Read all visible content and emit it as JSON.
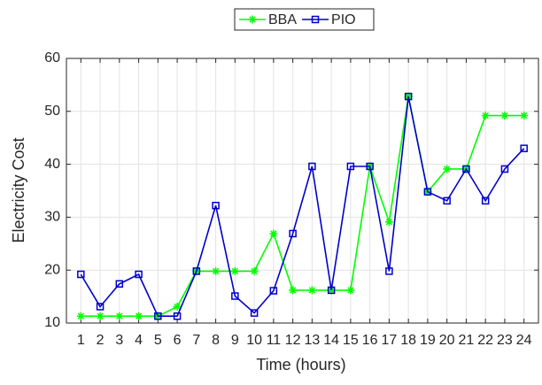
{
  "chart_data": {
    "type": "line",
    "x": [
      1,
      2,
      3,
      4,
      5,
      6,
      7,
      8,
      9,
      10,
      11,
      12,
      13,
      14,
      15,
      16,
      17,
      18,
      19,
      20,
      21,
      22,
      23,
      24
    ],
    "series": [
      {
        "name": "BBA",
        "color": "#00ff00",
        "marker": "asterisk",
        "values": [
          11.3,
          11.3,
          11.3,
          11.3,
          11.3,
          13.1,
          19.8,
          19.8,
          19.8,
          19.8,
          26.9,
          16.2,
          16.2,
          16.2,
          16.2,
          39.6,
          29.1,
          52.8,
          34.8,
          39.1,
          39.1,
          49.2,
          49.2,
          49.2
        ]
      },
      {
        "name": "PIO",
        "color": "#0000cc",
        "marker": "square",
        "values": [
          19.2,
          13.1,
          17.4,
          19.2,
          11.3,
          11.3,
          19.8,
          32.2,
          15.1,
          11.9,
          16.1,
          26.9,
          39.6,
          16.2,
          39.6,
          39.6,
          19.8,
          52.8,
          34.8,
          33.1,
          39.1,
          33.1,
          39.1,
          43.0
        ]
      }
    ],
    "xlabel": "Time (hours)",
    "ylabel": "Electricity Cost",
    "xlim": [
      0.25,
      24.75
    ],
    "ylim": [
      10,
      60
    ],
    "xticks": [
      1,
      2,
      3,
      4,
      5,
      6,
      7,
      8,
      9,
      10,
      11,
      12,
      13,
      14,
      15,
      16,
      17,
      18,
      19,
      20,
      21,
      22,
      23,
      24
    ],
    "yticks": [
      10,
      20,
      30,
      40,
      50,
      60
    ],
    "grid": true,
    "legend": "top"
  }
}
